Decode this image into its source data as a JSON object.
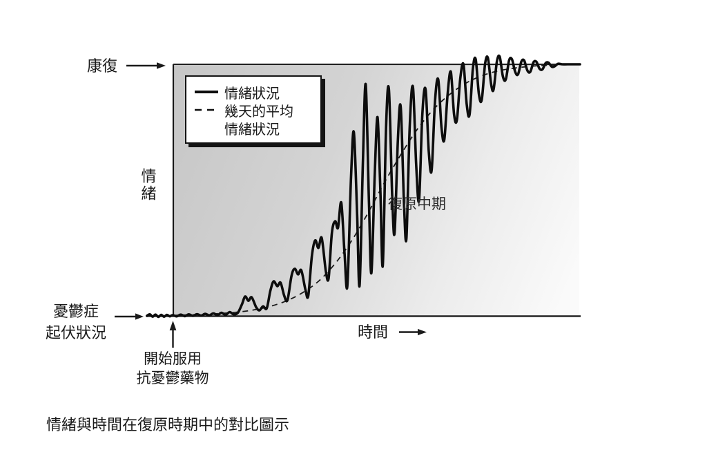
{
  "figure": {
    "caption": "情緒與時間在復原時期中的對比圖示",
    "y_axis_label": "情緒",
    "x_axis_label": "時間",
    "top_level_label": "康復",
    "baseline_label_line1": "憂鬱症",
    "baseline_label_line2": "起伏狀況",
    "treatment_label_line1": "開始服用",
    "treatment_label_line2": "抗憂鬱藥物",
    "phase_label": "復原中期"
  },
  "legend": {
    "items": [
      {
        "name": "情緒狀況",
        "label_line1": "情緒狀況",
        "label_line2": "",
        "style": "solid"
      },
      {
        "name": "幾天的平均情緒狀況",
        "label_line1": "幾天的平均",
        "label_line2": "情緒狀況",
        "style": "dashed"
      }
    ]
  },
  "colors": {
    "ink": "#1a1a1a",
    "plot_gradient_start": "#c6c6c6",
    "plot_gradient_end": "#fafafa"
  },
  "chart_data": {
    "type": "line",
    "title": "情緒與時間在復原時期中的對比圖示",
    "xlabel": "時間",
    "ylabel": "情緒",
    "x_range": [
      0,
      100
    ],
    "y_range": [
      0,
      100
    ],
    "y_reference_lines": [
      {
        "label": "康復",
        "value": 100
      },
      {
        "label": "憂鬱症起伏狀況",
        "value": 0
      }
    ],
    "annotations": [
      {
        "text": "開始服用抗憂鬱藥物",
        "x": 0,
        "y": 0,
        "type": "event-arrow"
      },
      {
        "text": "復原中期",
        "x": 55,
        "y": 45,
        "type": "text"
      }
    ],
    "legend_position": "top-left",
    "grid": false,
    "series": [
      {
        "name": "情緒狀況",
        "style": "solid",
        "points": [
          [
            -6.3,
            0
          ],
          [
            -5.6,
            0.6
          ],
          [
            -4.9,
            -0.3
          ],
          [
            -4.2,
            0.5
          ],
          [
            -3.5,
            -0.4
          ],
          [
            -2.8,
            0.4
          ],
          [
            -2.1,
            -0.3
          ],
          [
            -1.4,
            0.4
          ],
          [
            -0.7,
            -0.2
          ],
          [
            0,
            0.3
          ],
          [
            1,
            -0.2
          ],
          [
            2,
            0.5
          ],
          [
            3,
            -0.1
          ],
          [
            4,
            0.6
          ],
          [
            5,
            0
          ],
          [
            6,
            0.7
          ],
          [
            7,
            0.1
          ],
          [
            8,
            0.8
          ],
          [
            9,
            0.2
          ],
          [
            10,
            1
          ],
          [
            11,
            0.3
          ],
          [
            12,
            1.2
          ],
          [
            13,
            0.4
          ],
          [
            14,
            1.5
          ],
          [
            15,
            0.6
          ],
          [
            16,
            1.2
          ],
          [
            17,
            4.5
          ],
          [
            17.8,
            7.7
          ],
          [
            18.6,
            6
          ],
          [
            19.4,
            7.4
          ],
          [
            20.5,
            3.5
          ],
          [
            21.3,
            2.2
          ],
          [
            22.2,
            3.8
          ],
          [
            23.1,
            3
          ],
          [
            24,
            10
          ],
          [
            24.8,
            13.7
          ],
          [
            25.7,
            11.8
          ],
          [
            26.5,
            13.2
          ],
          [
            27.4,
            8
          ],
          [
            28.2,
            6.3
          ],
          [
            29.2,
            16
          ],
          [
            30,
            18.7
          ],
          [
            30.8,
            16.5
          ],
          [
            31.6,
            18.1
          ],
          [
            32.6,
            10.5
          ],
          [
            33.3,
            8
          ],
          [
            34.2,
            24
          ],
          [
            35,
            30
          ],
          [
            35.8,
            27
          ],
          [
            36.6,
            31
          ],
          [
            37.6,
            18
          ],
          [
            38.3,
            15
          ],
          [
            39.1,
            33
          ],
          [
            39.9,
            37.6
          ],
          [
            40.6,
            35
          ],
          [
            41.4,
            45
          ],
          [
            42.2,
            25
          ],
          [
            42.9,
            12
          ],
          [
            43.8,
            55
          ],
          [
            44.5,
            73
          ],
          [
            45.3,
            40
          ],
          [
            45.9,
            12
          ],
          [
            46.7,
            60
          ],
          [
            47.4,
            92
          ],
          [
            48.2,
            45
          ],
          [
            48.8,
            17
          ],
          [
            49.6,
            55
          ],
          [
            50.3,
            79
          ],
          [
            51,
            50
          ],
          [
            51.6,
            20
          ],
          [
            52.4,
            75
          ],
          [
            53.1,
            90
          ],
          [
            53.9,
            48
          ],
          [
            54.5,
            33
          ],
          [
            55.3,
            70
          ],
          [
            56,
            83
          ],
          [
            56.8,
            45
          ],
          [
            57.4,
            31
          ],
          [
            58.2,
            75
          ],
          [
            59,
            91
          ],
          [
            59.8,
            60
          ],
          [
            60.5,
            46
          ],
          [
            61.3,
            80
          ],
          [
            62.1,
            90
          ],
          [
            62.9,
            65
          ],
          [
            63.6,
            58
          ],
          [
            64.4,
            85
          ],
          [
            65.2,
            94
          ],
          [
            66,
            75
          ],
          [
            66.7,
            70
          ],
          [
            67.5,
            88
          ],
          [
            68.3,
            97
          ],
          [
            69.1,
            80
          ],
          [
            69.8,
            78
          ],
          [
            70.6,
            94
          ],
          [
            71.4,
            100
          ],
          [
            72.2,
            84
          ],
          [
            72.9,
            80
          ],
          [
            73.7,
            98
          ],
          [
            74.4,
            102
          ],
          [
            75.2,
            88
          ],
          [
            75.9,
            86
          ],
          [
            76.7,
            100
          ],
          [
            77.4,
            102.5
          ],
          [
            78.2,
            92
          ],
          [
            78.8,
            90
          ],
          [
            79.6,
            101
          ],
          [
            80.3,
            103
          ],
          [
            81.1,
            95
          ],
          [
            81.8,
            94
          ],
          [
            82.6,
            101.5
          ],
          [
            83.3,
            102
          ],
          [
            84.1,
            97
          ],
          [
            84.8,
            96
          ],
          [
            85.6,
            101
          ],
          [
            86.3,
            101.5
          ],
          [
            87.1,
            97.5
          ],
          [
            87.8,
            97
          ],
          [
            88.6,
            100.8
          ],
          [
            89.3,
            101
          ],
          [
            90.1,
            98.2
          ],
          [
            90.8,
            98
          ],
          [
            91.6,
            100.5
          ],
          [
            92.3,
            100.6
          ],
          [
            93.1,
            99
          ],
          [
            93.8,
            99.2
          ],
          [
            94.6,
            100.2
          ],
          [
            95.6,
            100
          ],
          [
            97,
            100
          ],
          [
            100,
            100
          ]
        ]
      },
      {
        "name": "幾天的平均情緒狀況",
        "style": "dashed",
        "points": [
          [
            0,
            0.2
          ],
          [
            4,
            0.4
          ],
          [
            8,
            0.6
          ],
          [
            12,
            1
          ],
          [
            16,
            1.5
          ],
          [
            20,
            2.4
          ],
          [
            24,
            3.8
          ],
          [
            28,
            6
          ],
          [
            32,
            9.3
          ],
          [
            36,
            14
          ],
          [
            40,
            21
          ],
          [
            44,
            30
          ],
          [
            48,
            41
          ],
          [
            52,
            53
          ],
          [
            56,
            64
          ],
          [
            60,
            74
          ],
          [
            64,
            82
          ],
          [
            68,
            88
          ],
          [
            72,
            92.5
          ],
          [
            76,
            95.5
          ],
          [
            80,
            97.4
          ],
          [
            84,
            98.5
          ],
          [
            88,
            99.2
          ],
          [
            92,
            99.6
          ],
          [
            96,
            99.9
          ],
          [
            100,
            100
          ]
        ]
      }
    ]
  }
}
